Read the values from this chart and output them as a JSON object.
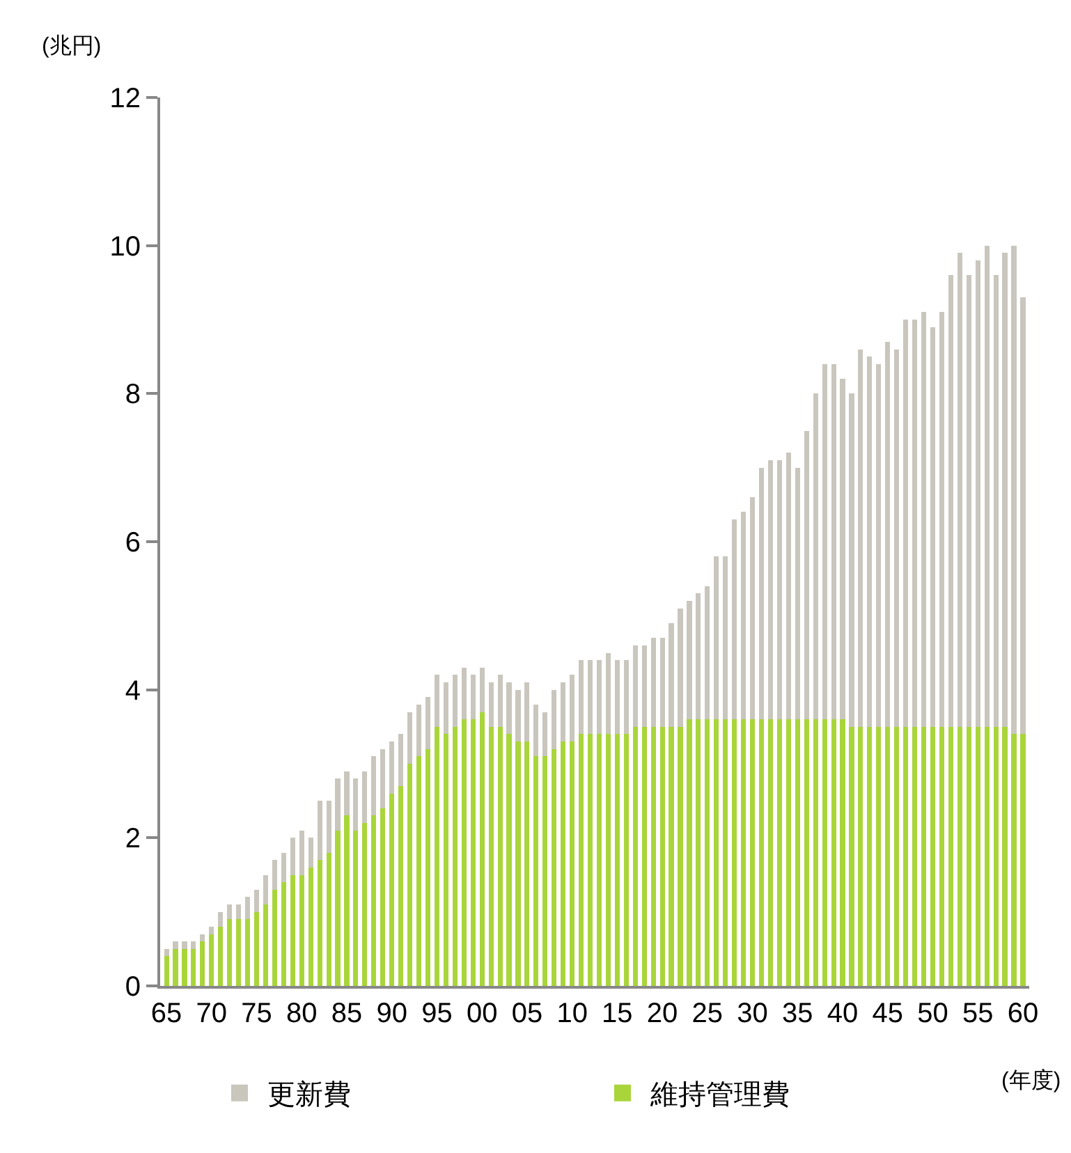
{
  "chart_data": {
    "type": "bar",
    "stacked": true,
    "ylabel": "(兆円)",
    "xlabel": "(年度)",
    "categories": [
      "65",
      null,
      null,
      null,
      null,
      "70",
      null,
      null,
      null,
      null,
      "75",
      null,
      null,
      null,
      null,
      "80",
      null,
      null,
      null,
      null,
      "85",
      null,
      null,
      null,
      null,
      "90",
      null,
      null,
      null,
      null,
      "95",
      null,
      null,
      null,
      null,
      "00",
      null,
      null,
      null,
      null,
      "05",
      null,
      null,
      null,
      null,
      "10",
      null,
      null,
      null,
      null,
      "15",
      null,
      null,
      null,
      null,
      "20",
      null,
      null,
      null,
      null,
      "25",
      null,
      null,
      null,
      null,
      "30",
      null,
      null,
      null,
      null,
      "35",
      null,
      null,
      null,
      null,
      "40",
      null,
      null,
      null,
      null,
      "45",
      null,
      null,
      null,
      null,
      "50",
      null,
      null,
      null,
      null,
      "55",
      null,
      null,
      null,
      null,
      "60"
    ],
    "series": [
      {
        "name": "維持管理費",
        "color": "#a9d53a",
        "values": [
          0.4,
          0.5,
          0.5,
          0.5,
          0.6,
          0.7,
          0.8,
          0.9,
          0.9,
          0.9,
          1.0,
          1.1,
          1.3,
          1.4,
          1.5,
          1.5,
          1.6,
          1.7,
          1.8,
          2.1,
          2.3,
          2.1,
          2.2,
          2.3,
          2.4,
          2.6,
          2.7,
          3.0,
          3.1,
          3.2,
          3.5,
          3.4,
          3.5,
          3.6,
          3.6,
          3.7,
          3.5,
          3.5,
          3.4,
          3.3,
          3.3,
          3.1,
          3.1,
          3.2,
          3.3,
          3.3,
          3.4,
          3.4,
          3.4,
          3.4,
          3.4,
          3.4,
          3.5,
          3.5,
          3.5,
          3.5,
          3.5,
          3.5,
          3.6,
          3.6,
          3.6,
          3.6,
          3.6,
          3.6,
          3.6,
          3.6,
          3.6,
          3.6,
          3.6,
          3.6,
          3.6,
          3.6,
          3.6,
          3.6,
          3.6,
          3.6,
          3.5,
          3.5,
          3.5,
          3.5,
          3.5,
          3.5,
          3.5,
          3.5,
          3.5,
          3.5,
          3.5,
          3.5,
          3.5,
          3.5,
          3.5,
          3.5,
          3.5,
          3.5,
          3.4,
          3.4
        ]
      },
      {
        "name": "更新費",
        "color": "#c9c6bd",
        "values": [
          0.1,
          0.1,
          0.1,
          0.1,
          0.1,
          0.1,
          0.2,
          0.2,
          0.2,
          0.3,
          0.3,
          0.4,
          0.4,
          0.4,
          0.5,
          0.6,
          0.4,
          0.8,
          0.7,
          0.7,
          0.6,
          0.7,
          0.7,
          0.8,
          0.8,
          0.7,
          0.7,
          0.7,
          0.7,
          0.7,
          0.7,
          0.7,
          0.7,
          0.7,
          0.6,
          0.6,
          0.6,
          0.7,
          0.7,
          0.7,
          0.8,
          0.7,
          0.6,
          0.8,
          0.8,
          0.9,
          1.0,
          1.0,
          1.0,
          1.1,
          1.0,
          1.0,
          1.1,
          1.1,
          1.2,
          1.2,
          1.4,
          1.6,
          1.6,
          1.7,
          1.8,
          2.2,
          2.2,
          2.7,
          2.8,
          3.0,
          3.4,
          3.5,
          3.5,
          3.6,
          3.4,
          3.9,
          4.4,
          4.8,
          4.8,
          4.6,
          4.5,
          5.1,
          5.0,
          4.9,
          5.2,
          5.1,
          5.5,
          5.5,
          5.6,
          5.4,
          5.6,
          6.1,
          6.4,
          6.1,
          6.3,
          6.5,
          6.1,
          6.4,
          6.6,
          5.9
        ]
      }
    ],
    "ylim": [
      0,
      12
    ],
    "yticks": [
      0,
      2,
      4,
      6,
      8,
      10,
      12
    ],
    "grid": false,
    "legend": "bottom"
  }
}
